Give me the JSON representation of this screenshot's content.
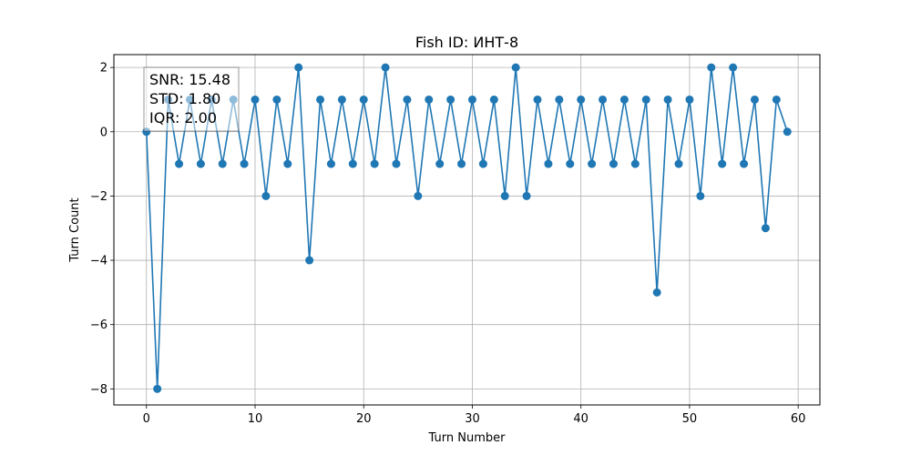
{
  "chart_data": {
    "type": "line",
    "title": "Fish ID: ИНТ-8",
    "xlabel": "Turn Number",
    "ylabel": "Turn Count",
    "xlim": [
      -3,
      62
    ],
    "ylim": [
      -8.5,
      2.4
    ],
    "xticks": [
      0,
      10,
      20,
      30,
      40,
      50,
      60
    ],
    "yticks": [
      -8,
      -6,
      -4,
      -2,
      0,
      2
    ],
    "grid": true,
    "series_color": "#1f77b4",
    "markers": "circle",
    "x": [
      0,
      1,
      2,
      3,
      4,
      5,
      6,
      7,
      8,
      9,
      10,
      11,
      12,
      13,
      14,
      15,
      16,
      17,
      18,
      19,
      20,
      21,
      22,
      23,
      24,
      25,
      26,
      27,
      28,
      29,
      30,
      31,
      32,
      33,
      34,
      35,
      36,
      37,
      38,
      39,
      40,
      41,
      42,
      43,
      44,
      45,
      46,
      47,
      48,
      49,
      50,
      51,
      52,
      53,
      54,
      55,
      56,
      57,
      58,
      59
    ],
    "y": [
      0,
      -8,
      1,
      -1,
      1,
      -1,
      1,
      -1,
      1,
      -1,
      1,
      -2,
      1,
      -1,
      2,
      -4,
      1,
      -1,
      1,
      -1,
      1,
      -1,
      2,
      -1,
      1,
      -2,
      1,
      -1,
      1,
      -1,
      1,
      -1,
      1,
      -2,
      2,
      -2,
      1,
      -1,
      1,
      -1,
      1,
      -1,
      1,
      -1,
      1,
      -1,
      1,
      -5,
      1,
      -1,
      1,
      -2,
      2,
      -1,
      2,
      -1,
      1,
      -3,
      1,
      0
    ],
    "annotation": {
      "lines": [
        "SNR: 15.48",
        "STD: 1.80",
        "IQR: 2.00"
      ],
      "placement": "upper-left"
    }
  }
}
